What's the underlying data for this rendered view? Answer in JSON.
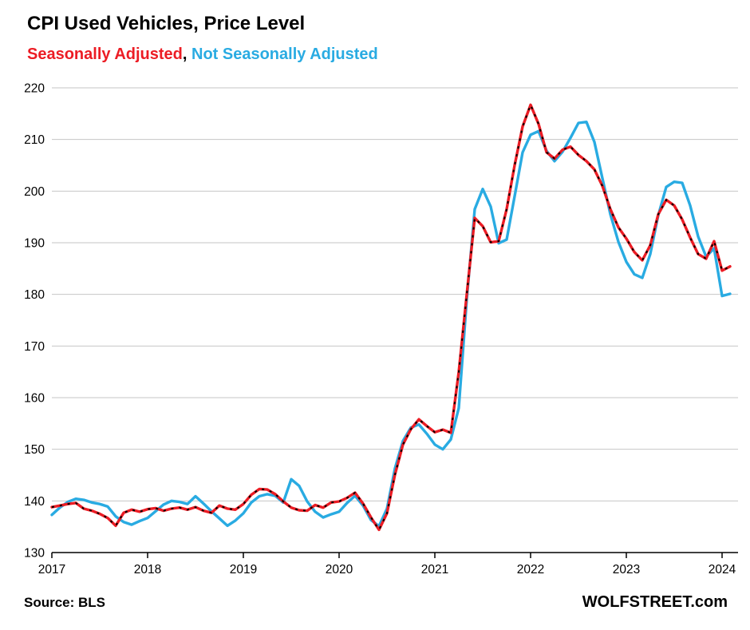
{
  "legend": {
    "sa_label": "Seasonally Adjusted",
    "separator": ", ",
    "nsa_label": "Not Seasonally Adjusted",
    "sa_color": "#EC1C24",
    "nsa_color": "#29ABE2"
  },
  "footer": {
    "source": "Source: BLS",
    "brand": "WOLFSTREET.com"
  },
  "chart_data": {
    "type": "line",
    "title": "CPI Used Vehicles, Price Level",
    "x_unit": "month",
    "x_start": "2017-01",
    "x_end": "2024-02",
    "x_tick_labels": [
      "2017",
      "2018",
      "2019",
      "2020",
      "2021",
      "2022",
      "2023",
      "2024"
    ],
    "ylim": [
      130,
      220
    ],
    "y_tick_step": 10,
    "y_tick_labels": [
      "130",
      "140",
      "150",
      "160",
      "170",
      "180",
      "190",
      "200",
      "210",
      "220"
    ],
    "grid": "horizontal",
    "legend_position": "top-left-subtitle",
    "series": [
      {
        "name": "Not Seasonally Adjusted",
        "color": "#29ABE2",
        "style": "solid",
        "values": [
          137.3,
          138.7,
          139.8,
          140.4,
          140.2,
          139.7,
          139.4,
          138.9,
          137.0,
          135.9,
          135.4,
          136.1,
          136.7,
          138.0,
          139.3,
          140.0,
          139.8,
          139.4,
          140.9,
          139.5,
          138.0,
          136.6,
          135.2,
          136.2,
          137.6,
          139.7,
          140.9,
          141.3,
          141.0,
          139.7,
          144.2,
          142.9,
          139.9,
          137.9,
          136.8,
          137.4,
          137.9,
          139.6,
          141.0,
          139.1,
          136.3,
          135.1,
          138.5,
          146.3,
          151.6,
          154.2,
          154.8,
          153.0,
          150.9,
          150.0,
          151.9,
          158.0,
          179.0,
          196.5,
          200.4,
          197.0,
          189.9,
          190.6,
          199.0,
          207.5,
          210.9,
          211.6,
          207.8,
          205.8,
          207.6,
          210.3,
          213.2,
          213.4,
          209.5,
          202.5,
          195.5,
          190.2,
          186.3,
          183.9,
          183.2,
          187.8,
          195.3,
          200.8,
          201.8,
          201.6,
          197.2,
          191.2,
          187.3,
          188.9,
          179.7,
          180.1
        ]
      },
      {
        "name": "Seasonally Adjusted",
        "color": "#EC1C24",
        "style": "solid-with-black-dashes",
        "overlay": {
          "color": "#000000",
          "dash": "3 7"
        },
        "values": [
          138.8,
          139.1,
          139.4,
          139.6,
          138.5,
          138.1,
          137.5,
          136.7,
          135.2,
          137.7,
          138.3,
          137.9,
          138.4,
          138.6,
          138.1,
          138.5,
          138.7,
          138.3,
          138.8,
          138.1,
          137.7,
          139.1,
          138.5,
          138.3,
          139.4,
          141.2,
          142.3,
          142.2,
          141.3,
          139.9,
          138.7,
          138.2,
          138.1,
          139.2,
          138.7,
          139.7,
          139.9,
          140.6,
          141.6,
          139.5,
          136.8,
          134.4,
          137.6,
          145.1,
          150.9,
          153.9,
          155.8,
          154.5,
          153.3,
          153.8,
          153.2,
          165.0,
          180.0,
          194.8,
          193.2,
          190.1,
          190.3,
          196.5,
          205.0,
          212.5,
          216.7,
          213.0,
          207.5,
          206.3,
          208.0,
          208.6,
          207.0,
          205.8,
          204.2,
          201.0,
          196.5,
          193.0,
          190.8,
          188.2,
          186.6,
          189.5,
          195.5,
          198.3,
          197.2,
          194.5,
          191.0,
          187.8,
          186.9,
          190.3,
          184.6,
          185.4
        ]
      }
    ]
  }
}
